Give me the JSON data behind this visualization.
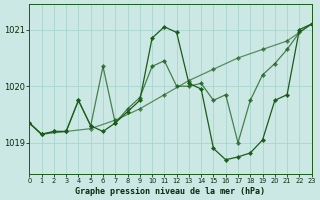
{
  "title": "Graphe pression niveau de la mer (hPa)",
  "background_color": "#cce8e4",
  "grid_color": "#a8d4ce",
  "line_color": "#1a5c1a",
  "xlim": [
    0,
    23
  ],
  "ylim": [
    1018.45,
    1021.45
  ],
  "yticks": [
    1019,
    1020,
    1021
  ],
  "xticks": [
    0,
    1,
    2,
    3,
    4,
    5,
    6,
    7,
    8,
    9,
    10,
    11,
    12,
    13,
    14,
    15,
    16,
    17,
    18,
    19,
    20,
    21,
    22,
    23
  ],
  "series1_x": [
    0,
    1,
    3,
    5,
    7,
    9,
    11,
    13,
    15,
    17,
    19,
    21,
    23
  ],
  "series1_y": [
    1019.35,
    1019.15,
    1019.2,
    1019.25,
    1019.4,
    1019.6,
    1019.85,
    1020.1,
    1020.3,
    1020.5,
    1020.65,
    1020.8,
    1021.1
  ],
  "series2_x": [
    0,
    1,
    2,
    3,
    4,
    5,
    6,
    7,
    8,
    9,
    10,
    11,
    12,
    13,
    14,
    15,
    16,
    17,
    18,
    19,
    20,
    21,
    22,
    23
  ],
  "series2_y": [
    1019.35,
    1019.15,
    1019.2,
    1019.2,
    1019.75,
    1019.3,
    1019.2,
    1019.35,
    1019.55,
    1019.75,
    1020.85,
    1021.05,
    1020.95,
    1020.05,
    1019.95,
    1018.9,
    1018.7,
    1018.75,
    1018.82,
    1019.05,
    1019.75,
    1019.85,
    1021.0,
    1021.1
  ],
  "series3_x": [
    0,
    1,
    2,
    3,
    4,
    5,
    6,
    7,
    8,
    9,
    10,
    11,
    12,
    13,
    14,
    15,
    16,
    17,
    18,
    19,
    20,
    21,
    22,
    23
  ],
  "series3_y": [
    1019.35,
    1019.15,
    1019.2,
    1019.2,
    1019.75,
    1019.3,
    1020.35,
    1019.35,
    1019.6,
    1019.8,
    1020.35,
    1020.45,
    1020.0,
    1020.0,
    1020.05,
    1019.75,
    1019.85,
    1019.0,
    1019.75,
    1020.2,
    1020.4,
    1020.65,
    1020.95,
    1021.1
  ]
}
